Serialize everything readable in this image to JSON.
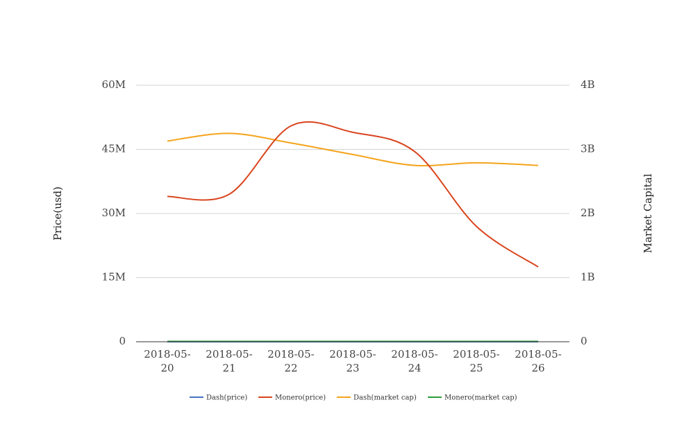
{
  "chart_data": {
    "type": "line",
    "categories": [
      [
        "2018-05-",
        "20"
      ],
      [
        "2018-05-",
        "21"
      ],
      [
        "2018-05-",
        "22"
      ],
      [
        "2018-05-",
        "23"
      ],
      [
        "2018-05-",
        "24"
      ],
      [
        "2018-05-",
        "25"
      ],
      [
        "2018-05-",
        "26"
      ]
    ],
    "ylabel": "Price(usd)",
    "ylabel_right": "Market Capital",
    "ylim": [
      0,
      60000000
    ],
    "ylim_right": [
      0,
      4000000000
    ],
    "yticks": [
      "0",
      "15M",
      "30M",
      "45M",
      "60M"
    ],
    "yticks_right": [
      "0",
      "1B",
      "2B",
      "3B",
      "4B"
    ],
    "grid": true,
    "legend_position": "bottom",
    "series": [
      {
        "name": "Dash(price)",
        "axis": "left",
        "color": "#4472c4",
        "values": [
          330,
          345,
          385,
          360,
          345,
          335,
          320
        ]
      },
      {
        "name": "Monero(price)",
        "axis": "left",
        "color": "#d9441d",
        "values": [
          34000000,
          34500000,
          50500000,
          49000000,
          44500000,
          27000000,
          17500000
        ]
      },
      {
        "name": "Dash(market cap)",
        "axis": "right",
        "color": "#f5a31a",
        "values": [
          3130000000,
          3250000000,
          3100000000,
          2920000000,
          2750000000,
          2790000000,
          2750000000
        ]
      },
      {
        "name": "Monero(market cap)",
        "axis": "right",
        "color": "#2e9c3a",
        "values": [
          5400000,
          5500000,
          5900000,
          5700000,
          5600000,
          5300000,
          5000000
        ]
      }
    ]
  }
}
